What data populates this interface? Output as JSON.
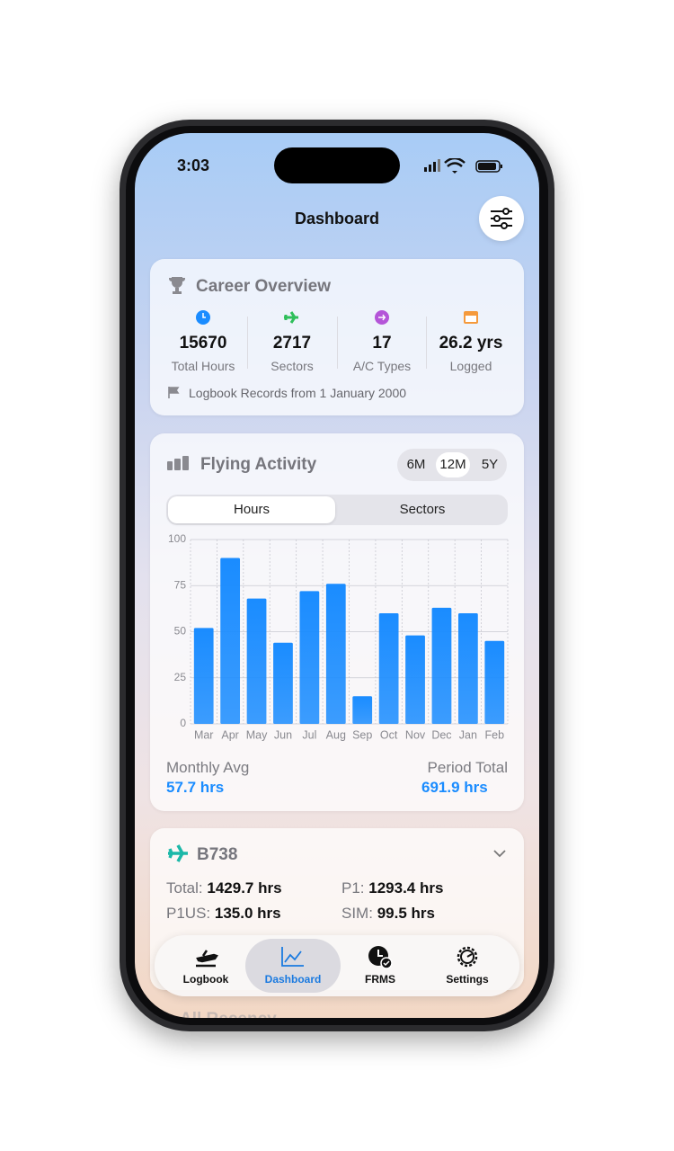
{
  "status_bar": {
    "time": "3:03"
  },
  "header": {
    "title": "Dashboard"
  },
  "career_overview": {
    "title": "Career Overview",
    "stats": [
      {
        "value": "15670",
        "label": "Total Hours"
      },
      {
        "value": "2717",
        "label": "Sectors"
      },
      {
        "value": "17",
        "label": "A/C Types"
      },
      {
        "value": "26.2 yrs",
        "label": "Logged"
      }
    ],
    "note": "Logbook Records from 1 January 2000"
  },
  "flying_activity": {
    "title": "Flying Activity",
    "ranges": [
      "6M",
      "12M",
      "5Y"
    ],
    "selected_range": "12M",
    "tabs": [
      "Hours",
      "Sectors"
    ],
    "selected_tab": "Hours",
    "chart_data": {
      "type": "bar",
      "categories": [
        "Mar",
        "Apr",
        "May",
        "Jun",
        "Jul",
        "Aug",
        "Sep",
        "Oct",
        "Nov",
        "Dec",
        "Jan",
        "Feb"
      ],
      "values": [
        52,
        90,
        68,
        44,
        72,
        76,
        15,
        60,
        48,
        63,
        60,
        45
      ],
      "color": "#1a8cff",
      "ylim": [
        0,
        100
      ],
      "yticks": [
        0,
        25,
        50,
        75,
        100
      ],
      "grid": true
    },
    "summary": [
      {
        "label": "Monthly Avg",
        "value": "57.7 hrs"
      },
      {
        "label": "Period Total",
        "value": "691.9 hrs"
      }
    ]
  },
  "aircraft": {
    "type": "B738",
    "rows": [
      {
        "label": "Total:",
        "value": "1429.7 hrs"
      },
      {
        "label": "P1:",
        "value": "1293.4 hrs"
      },
      {
        "label": "P1US:",
        "value": "135.0 hrs"
      },
      {
        "label": "SIM:",
        "value": "99.5 hrs"
      }
    ]
  },
  "next_section": {
    "title": "All Recency"
  },
  "tab_bar": {
    "items": [
      "Logbook",
      "Dashboard",
      "FRMS",
      "Settings"
    ],
    "active": "Dashboard"
  }
}
